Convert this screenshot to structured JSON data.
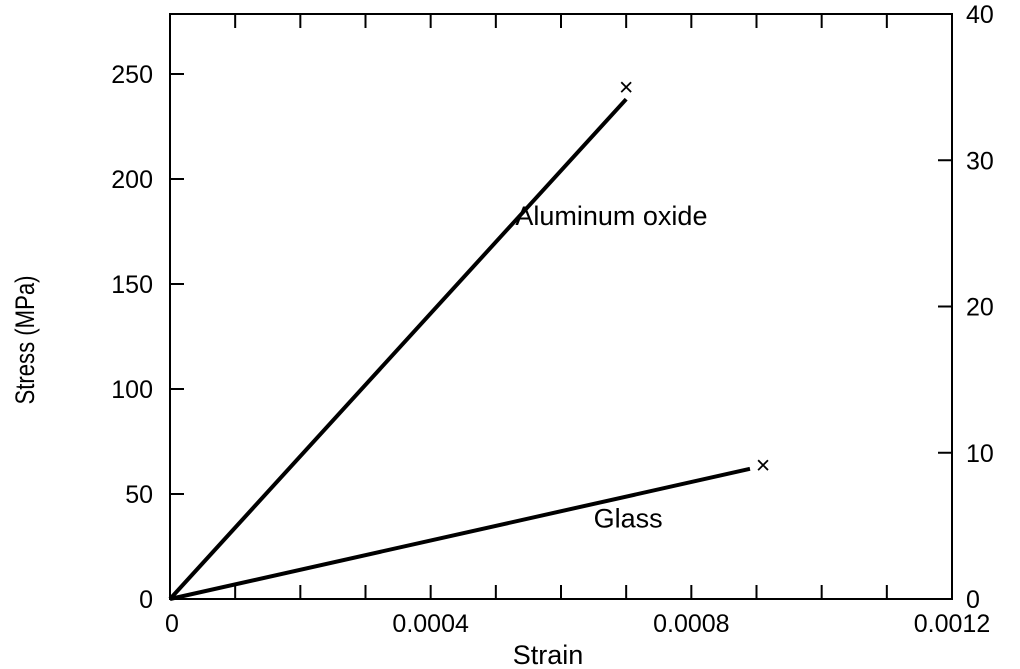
{
  "chart_data": {
    "type": "line",
    "xlabel": "Strain",
    "ylabel": "Stress (MPa)",
    "xlim": [
      0,
      0.0012
    ],
    "ylim": [
      0,
      275
    ],
    "x_ticks": [
      0,
      0.0004,
      0.0008,
      0.0012
    ],
    "x_tick_labels": [
      "0",
      "0.0004",
      "0.0008",
      "0.0012"
    ],
    "x_minor_step": 0.0001,
    "y_ticks": [
      0,
      50,
      100,
      150,
      200,
      250
    ],
    "y_tick_labels": [
      "0",
      "50",
      "100",
      "150",
      "200",
      "250"
    ],
    "y2_ticks": [
      0,
      10,
      20,
      30,
      40
    ],
    "y2_tick_labels": [
      "0",
      "10",
      "20",
      "30",
      "40"
    ],
    "y2lim": [
      0,
      40
    ],
    "grid": false,
    "series": [
      {
        "label": "Aluminum oxide",
        "x": [
          0,
          0.0007
        ],
        "y": [
          0,
          238
        ],
        "fracture": [
          0.0007,
          243
        ]
      },
      {
        "label": "Glass",
        "x": [
          0,
          0.00089
        ],
        "y": [
          0,
          62
        ],
        "fracture": [
          0.00091,
          63
        ]
      }
    ],
    "annotations": [
      {
        "text": "Aluminum oxide",
        "x": 0.00053,
        "y": 178
      },
      {
        "text": "Glass",
        "x": 0.00065,
        "y": 34
      }
    ],
    "fracture_marker": "×"
  }
}
